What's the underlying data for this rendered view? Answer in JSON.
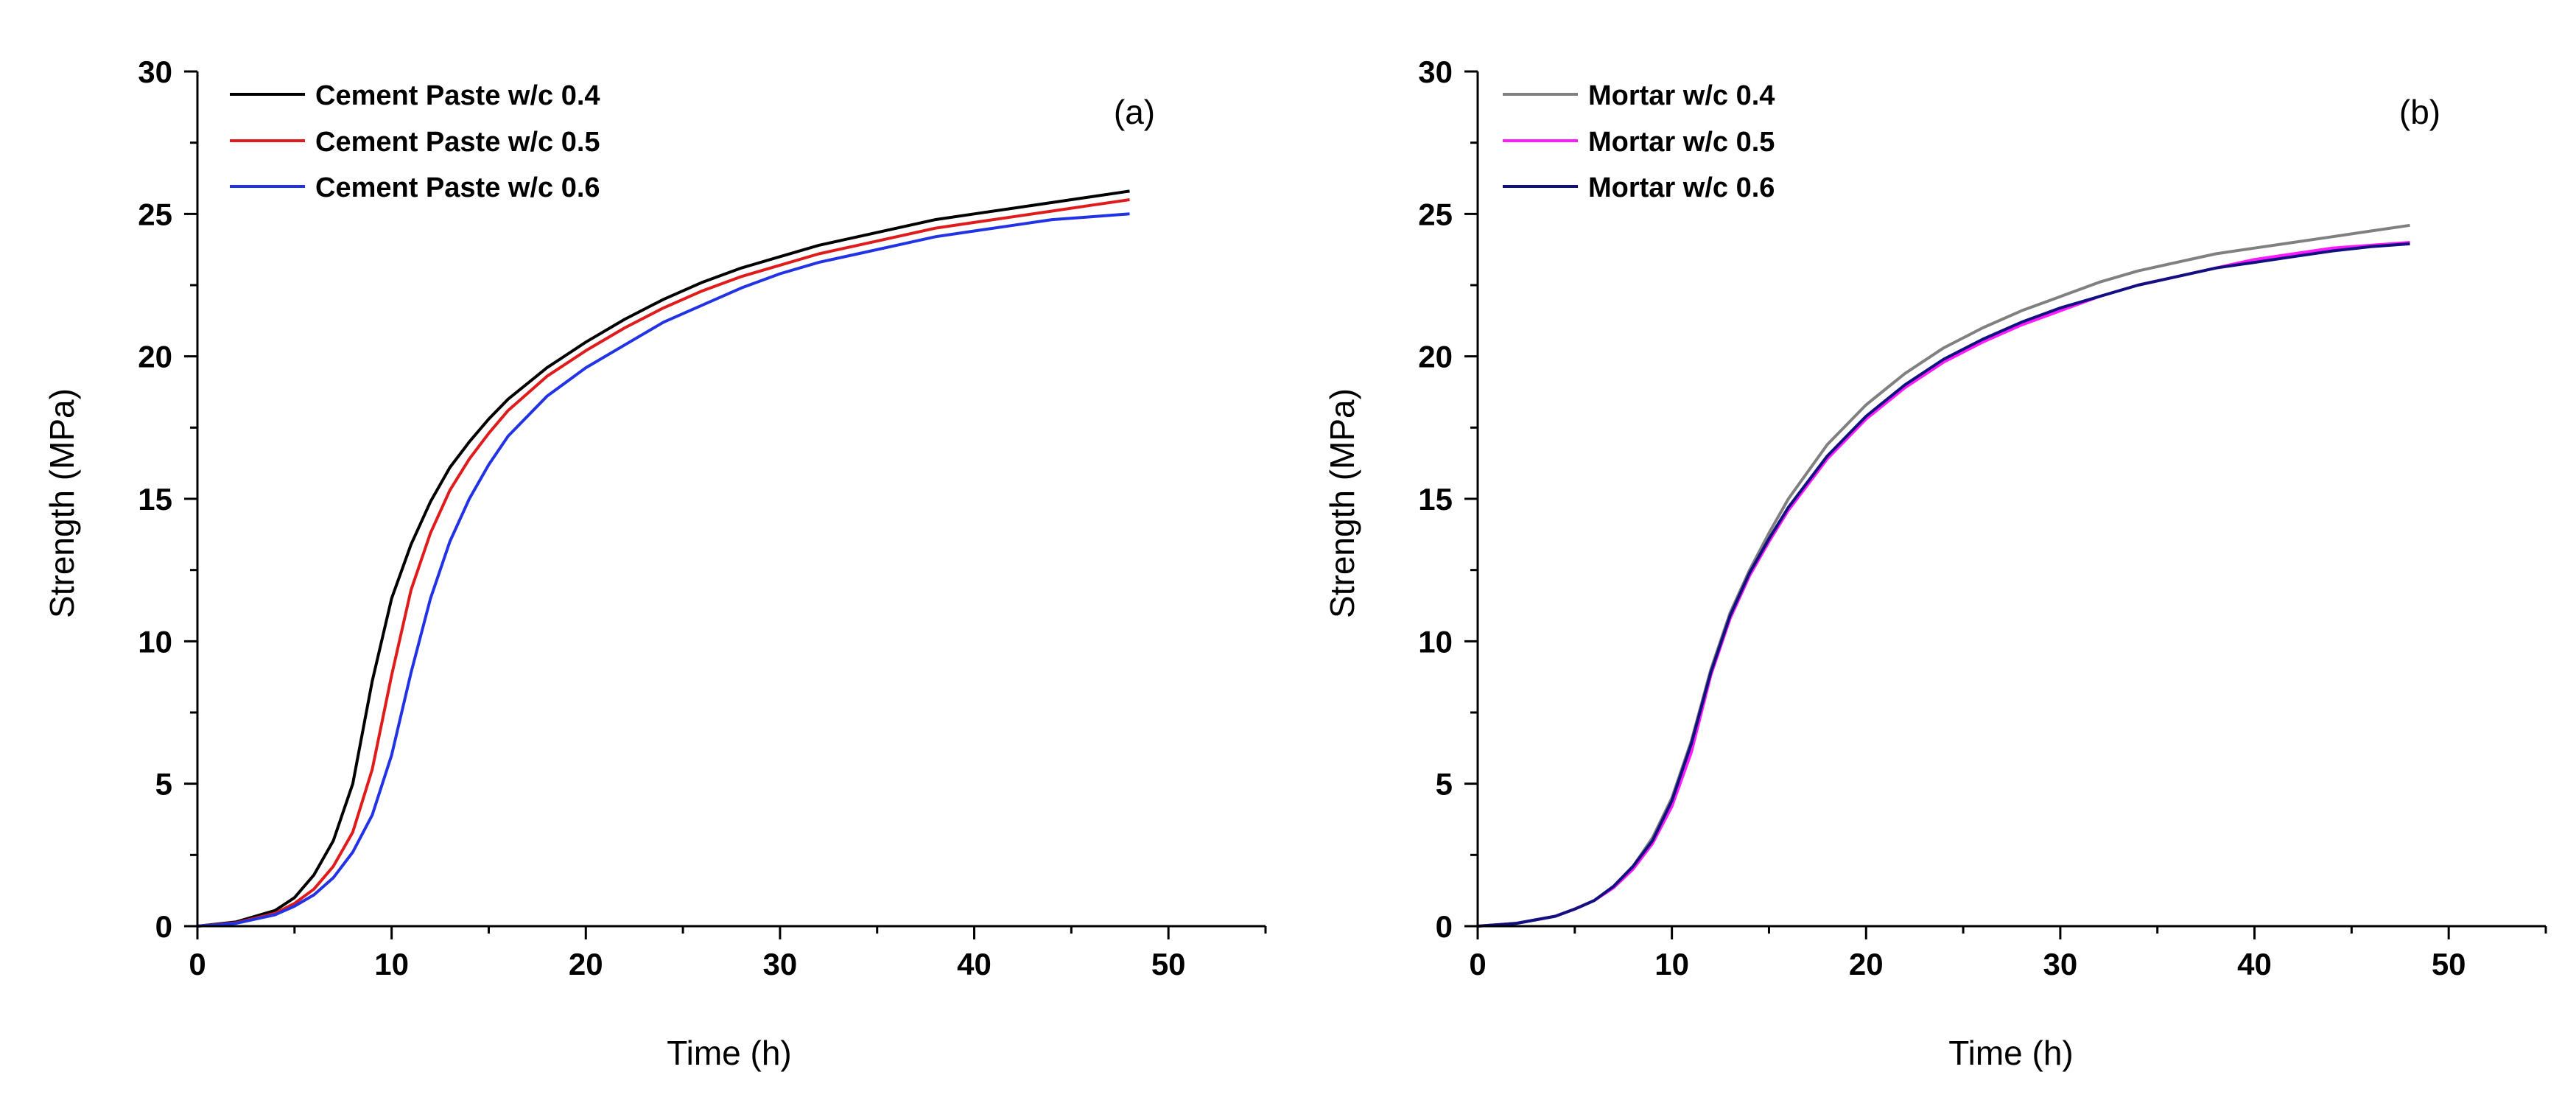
{
  "chart_data": [
    {
      "type": "line",
      "panel_label": "(a)",
      "xlabel": "Time (h)",
      "ylabel": "Strength (MPa)",
      "xlim": [
        0,
        55
      ],
      "ylim": [
        0,
        30
      ],
      "xticks": [
        "0",
        "10",
        "20",
        "30",
        "40",
        "50"
      ],
      "yticks": [
        "0",
        "5",
        "10",
        "15",
        "20",
        "25",
        "30"
      ],
      "legend_position": "top-left",
      "x": [
        0,
        2,
        4,
        5,
        6,
        7,
        8,
        9,
        10,
        11,
        12,
        13,
        14,
        15,
        16,
        18,
        20,
        22,
        24,
        26,
        28,
        30,
        32,
        34,
        36,
        38,
        40,
        42,
        44,
        46,
        48
      ],
      "series": [
        {
          "name": "Cement Paste w/c 0.4",
          "color": "#000000",
          "values": [
            0,
            0.15,
            0.55,
            1.0,
            1.8,
            3.0,
            5.0,
            8.6,
            11.5,
            13.4,
            14.9,
            16.1,
            17.0,
            17.8,
            18.5,
            19.6,
            20.5,
            21.3,
            22.0,
            22.6,
            23.1,
            23.5,
            23.9,
            24.2,
            24.5,
            24.8,
            25.0,
            25.2,
            25.4,
            25.6,
            25.8
          ]
        },
        {
          "name": "Cement Paste w/c 0.5",
          "color": "#e01b1b",
          "values": [
            0,
            0.12,
            0.45,
            0.8,
            1.3,
            2.1,
            3.3,
            5.5,
            8.8,
            11.8,
            13.8,
            15.3,
            16.4,
            17.3,
            18.1,
            19.3,
            20.2,
            21.0,
            21.7,
            22.3,
            22.8,
            23.2,
            23.6,
            23.9,
            24.2,
            24.5,
            24.7,
            24.9,
            25.1,
            25.3,
            25.5
          ]
        },
        {
          "name": "Cement Paste w/c 0.6",
          "color": "#2233e6",
          "values": [
            0,
            0.1,
            0.4,
            0.7,
            1.1,
            1.7,
            2.6,
            3.9,
            6.0,
            8.9,
            11.5,
            13.5,
            15.0,
            16.2,
            17.2,
            18.6,
            19.6,
            20.4,
            21.2,
            21.8,
            22.4,
            22.9,
            23.3,
            23.6,
            23.9,
            24.2,
            24.4,
            24.6,
            24.8,
            24.9,
            25.0
          ]
        }
      ]
    },
    {
      "type": "line",
      "panel_label": "(b)",
      "xlabel": "Time (h)",
      "ylabel": "Strength (MPa)",
      "xlim": [
        0,
        55
      ],
      "ylim": [
        0,
        30
      ],
      "xticks": [
        "0",
        "10",
        "20",
        "30",
        "40",
        "50"
      ],
      "yticks": [
        "0",
        "5",
        "10",
        "15",
        "20",
        "25",
        "30"
      ],
      "legend_position": "top-left",
      "x": [
        0,
        2,
        4,
        5,
        6,
        7,
        8,
        9,
        10,
        11,
        12,
        13,
        14,
        15,
        16,
        18,
        20,
        22,
        24,
        26,
        28,
        30,
        32,
        34,
        36,
        38,
        40,
        42,
        44,
        46,
        48
      ],
      "series": [
        {
          "name": "Mortar w/c 0.4",
          "color": "#808080",
          "values": [
            0,
            0.1,
            0.35,
            0.6,
            0.9,
            1.4,
            2.1,
            3.1,
            4.5,
            6.5,
            9.0,
            11.0,
            12.5,
            13.8,
            15.0,
            16.9,
            18.3,
            19.4,
            20.3,
            21.0,
            21.6,
            22.1,
            22.6,
            23.0,
            23.3,
            23.6,
            23.8,
            24.0,
            24.2,
            24.4,
            24.6
          ]
        },
        {
          "name": "Mortar w/c 0.5",
          "color": "#ff1aff",
          "values": [
            0,
            0.1,
            0.35,
            0.6,
            0.9,
            1.35,
            2.0,
            2.9,
            4.2,
            6.1,
            8.8,
            10.8,
            12.3,
            13.5,
            14.6,
            16.4,
            17.8,
            18.9,
            19.8,
            20.5,
            21.1,
            21.6,
            22.1,
            22.5,
            22.8,
            23.1,
            23.4,
            23.6,
            23.8,
            23.9,
            24.0
          ]
        },
        {
          "name": "Mortar w/c 0.6",
          "color": "#101080",
          "values": [
            0,
            0.1,
            0.35,
            0.6,
            0.9,
            1.4,
            2.1,
            3.0,
            4.4,
            6.4,
            8.9,
            10.9,
            12.4,
            13.6,
            14.7,
            16.5,
            17.9,
            19.0,
            19.9,
            20.6,
            21.2,
            21.7,
            22.1,
            22.5,
            22.8,
            23.1,
            23.3,
            23.5,
            23.7,
            23.85,
            23.95
          ]
        }
      ]
    }
  ]
}
